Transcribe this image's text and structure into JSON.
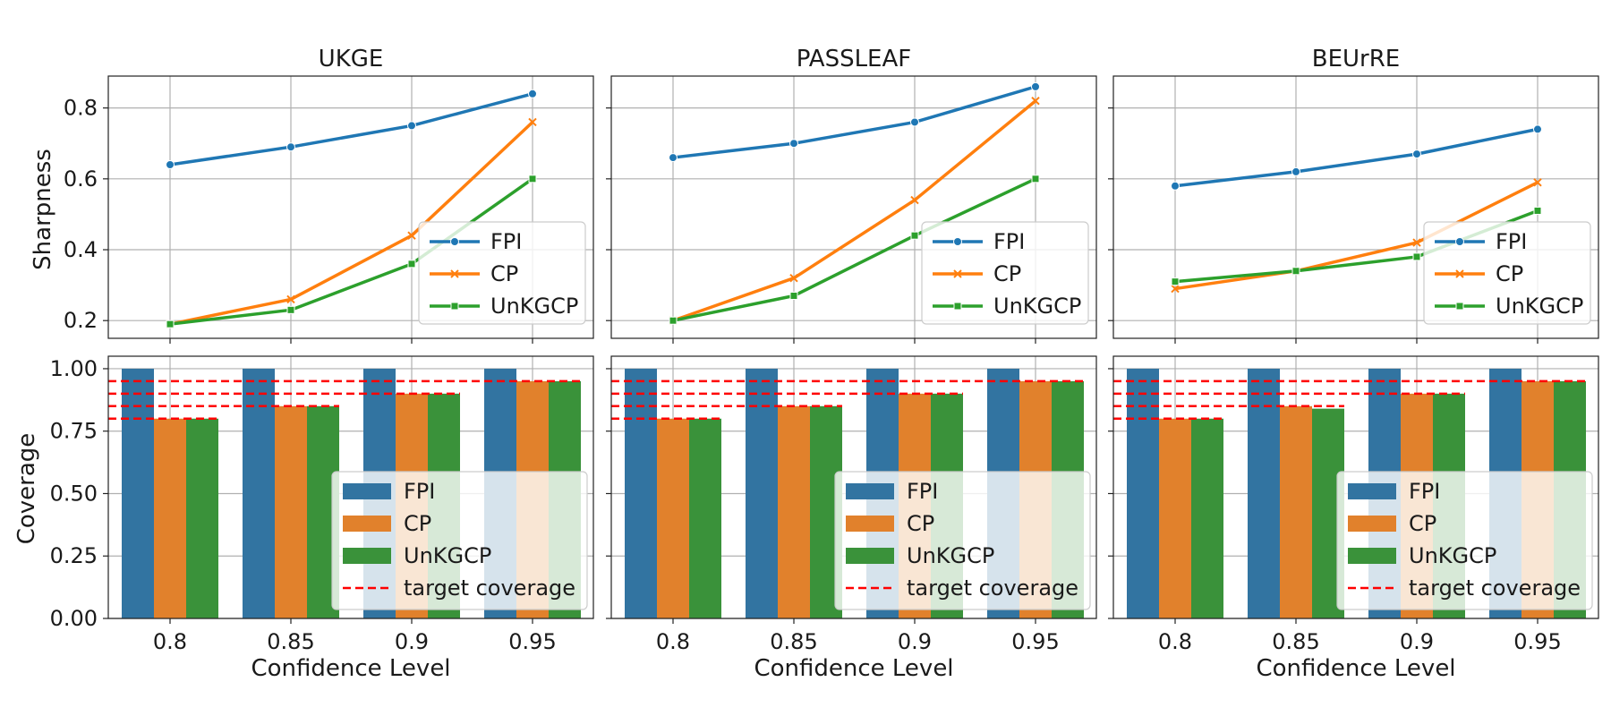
{
  "figure": {
    "shared_x_label": "Confidence Level",
    "sharpness_ylabel": "Sharpness",
    "coverage_ylabel": "Coverage"
  },
  "legend": {
    "fpi": "FPI",
    "cp": "CP",
    "unkgcp": "UnKGCP",
    "target": "target coverage"
  },
  "colors": {
    "fpi": "#1f77b4",
    "cp": "#ff7f0e",
    "unkgcp": "#2ca02c",
    "fpi_bar": "#3274a1",
    "cp_bar": "#e1812c",
    "unkgcp_bar": "#3a923a",
    "target": "#ff0000"
  },
  "panels": [
    {
      "title": "UKGE"
    },
    {
      "title": "PASSLEAF"
    },
    {
      "title": "BEUrRE"
    }
  ],
  "chart_data": [
    {
      "type": "line",
      "panel": "UKGE",
      "title": "UKGE",
      "categories": [
        "0.8",
        "0.85",
        "0.9",
        "0.95"
      ],
      "ylabel": "Sharpness",
      "ylim": [
        0.15,
        0.89
      ],
      "yticks": [
        "0.2",
        "0.4",
        "0.6",
        "0.8"
      ],
      "grid": true,
      "legend": "lower-right",
      "series": [
        {
          "name": "FPI",
          "values": [
            0.64,
            0.69,
            0.75,
            0.84
          ]
        },
        {
          "name": "CP",
          "values": [
            0.19,
            0.26,
            0.44,
            0.76
          ]
        },
        {
          "name": "UnKGCP",
          "values": [
            0.19,
            0.23,
            0.36,
            0.6
          ]
        }
      ]
    },
    {
      "type": "line",
      "panel": "PASSLEAF",
      "title": "PASSLEAF",
      "categories": [
        "0.8",
        "0.85",
        "0.9",
        "0.95"
      ],
      "ylabel": "",
      "ylim": [
        0.15,
        0.89
      ],
      "grid": true,
      "legend": "lower-right",
      "series": [
        {
          "name": "FPI",
          "values": [
            0.66,
            0.7,
            0.76,
            0.86
          ]
        },
        {
          "name": "CP",
          "values": [
            0.2,
            0.32,
            0.54,
            0.82
          ]
        },
        {
          "name": "UnKGCP",
          "values": [
            0.2,
            0.27,
            0.44,
            0.6
          ]
        }
      ]
    },
    {
      "type": "line",
      "panel": "BEUrRE",
      "title": "BEUrRE",
      "categories": [
        "0.8",
        "0.85",
        "0.9",
        "0.95"
      ],
      "ylabel": "",
      "ylim": [
        0.15,
        0.89
      ],
      "grid": true,
      "legend": "lower-right",
      "series": [
        {
          "name": "FPI",
          "values": [
            0.58,
            0.62,
            0.67,
            0.74
          ]
        },
        {
          "name": "CP",
          "values": [
            0.29,
            0.34,
            0.42,
            0.59
          ]
        },
        {
          "name": "UnKGCP",
          "values": [
            0.31,
            0.34,
            0.38,
            0.51
          ]
        }
      ]
    },
    {
      "type": "bar",
      "panel": "UKGE",
      "categories": [
        "0.8",
        "0.85",
        "0.9",
        "0.95"
      ],
      "xlabel": "Confidence Level",
      "ylabel": "Coverage",
      "ylim": [
        0,
        1.05
      ],
      "yticks": [
        "0.00",
        "0.25",
        "0.50",
        "0.75",
        "1.00"
      ],
      "grid": true,
      "legend": "lower-right",
      "target_coverage": [
        0.8,
        0.85,
        0.9,
        0.95
      ],
      "series": [
        {
          "name": "FPI",
          "values": [
            1.0,
            1.0,
            1.0,
            1.0
          ]
        },
        {
          "name": "CP",
          "values": [
            0.8,
            0.85,
            0.9,
            0.95
          ]
        },
        {
          "name": "UnKGCP",
          "values": [
            0.8,
            0.85,
            0.9,
            0.95
          ]
        }
      ]
    },
    {
      "type": "bar",
      "panel": "PASSLEAF",
      "categories": [
        "0.8",
        "0.85",
        "0.9",
        "0.95"
      ],
      "xlabel": "Confidence Level",
      "ylabel": "",
      "ylim": [
        0,
        1.05
      ],
      "grid": true,
      "legend": "lower-right",
      "target_coverage": [
        0.8,
        0.85,
        0.9,
        0.95
      ],
      "series": [
        {
          "name": "FPI",
          "values": [
            1.0,
            1.0,
            1.0,
            1.0
          ]
        },
        {
          "name": "CP",
          "values": [
            0.8,
            0.85,
            0.9,
            0.95
          ]
        },
        {
          "name": "UnKGCP",
          "values": [
            0.8,
            0.85,
            0.9,
            0.95
          ]
        }
      ]
    },
    {
      "type": "bar",
      "panel": "BEUrRE",
      "categories": [
        "0.8",
        "0.85",
        "0.9",
        "0.95"
      ],
      "xlabel": "Confidence Level",
      "ylabel": "",
      "ylim": [
        0,
        1.05
      ],
      "grid": true,
      "legend": "lower-right",
      "target_coverage": [
        0.8,
        0.85,
        0.9,
        0.95
      ],
      "series": [
        {
          "name": "FPI",
          "values": [
            1.0,
            1.0,
            1.0,
            1.0
          ]
        },
        {
          "name": "CP",
          "values": [
            0.8,
            0.85,
            0.9,
            0.95
          ]
        },
        {
          "name": "UnKGCP",
          "values": [
            0.8,
            0.84,
            0.9,
            0.95
          ]
        }
      ]
    }
  ]
}
